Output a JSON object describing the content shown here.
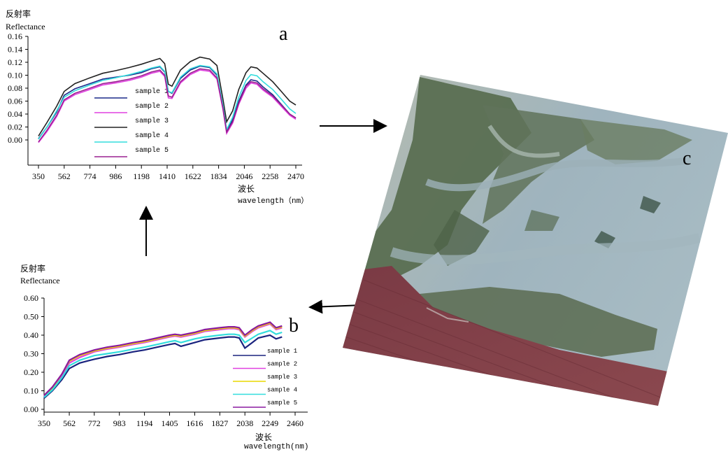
{
  "panel_labels": {
    "a": "a",
    "b": "b",
    "c": "c"
  },
  "chart_data": [
    {
      "type": "line",
      "panel": "a",
      "ylabel_cn": "反射率",
      "ylabel": "Reflectance",
      "xlabel_cn": "波长",
      "xlabel": "wavelength（nm）",
      "xlim": [
        350,
        2470
      ],
      "ylim": [
        0.0,
        0.16
      ],
      "yticks": [
        "0.00",
        "0.02",
        "0.04",
        "0.06",
        "0.08",
        "0.10",
        "0.12",
        "0.14",
        "0.16"
      ],
      "xticks": [
        "350",
        "562",
        "774",
        "986",
        "1198",
        "1410",
        "1622",
        "1834",
        "2046",
        "2258",
        "2470"
      ],
      "x": [
        350,
        420,
        500,
        562,
        650,
        774,
        880,
        986,
        1100,
        1198,
        1280,
        1350,
        1390,
        1420,
        1450,
        1520,
        1600,
        1680,
        1760,
        1820,
        1870,
        1900,
        1950,
        2000,
        2060,
        2100,
        2150,
        2200,
        2280,
        2350,
        2420,
        2470
      ],
      "series": [
        {
          "name": "sample 1",
          "color": "#1a2a8a",
          "values": [
            0.002,
            0.02,
            0.043,
            0.069,
            0.079,
            0.087,
            0.094,
            0.097,
            0.1,
            0.104,
            0.11,
            0.113,
            0.105,
            0.075,
            0.072,
            0.095,
            0.108,
            0.114,
            0.112,
            0.1,
            0.052,
            0.014,
            0.031,
            0.06,
            0.085,
            0.093,
            0.091,
            0.082,
            0.07,
            0.055,
            0.04,
            0.034
          ]
        },
        {
          "name": "sample 2",
          "color": "#e040e0",
          "values": [
            -0.004,
            0.013,
            0.036,
            0.06,
            0.07,
            0.078,
            0.085,
            0.088,
            0.092,
            0.097,
            0.103,
            0.106,
            0.098,
            0.065,
            0.064,
            0.088,
            0.101,
            0.108,
            0.106,
            0.094,
            0.047,
            0.01,
            0.026,
            0.055,
            0.08,
            0.088,
            0.086,
            0.077,
            0.066,
            0.052,
            0.038,
            0.032
          ]
        },
        {
          "name": "sample 3",
          "color": "#222222",
          "values": [
            0.006,
            0.027,
            0.052,
            0.075,
            0.087,
            0.096,
            0.103,
            0.107,
            0.112,
            0.117,
            0.122,
            0.126,
            0.118,
            0.086,
            0.083,
            0.108,
            0.121,
            0.128,
            0.125,
            0.115,
            0.063,
            0.028,
            0.045,
            0.078,
            0.104,
            0.113,
            0.111,
            0.103,
            0.09,
            0.075,
            0.06,
            0.054
          ]
        },
        {
          "name": "sample 4",
          "color": "#33dddd",
          "values": [
            0.001,
            0.02,
            0.045,
            0.066,
            0.076,
            0.085,
            0.092,
            0.096,
            0.101,
            0.106,
            0.111,
            0.114,
            0.106,
            0.075,
            0.073,
            0.097,
            0.11,
            0.115,
            0.113,
            0.102,
            0.054,
            0.016,
            0.035,
            0.066,
            0.092,
            0.101,
            0.099,
            0.09,
            0.078,
            0.063,
            0.048,
            0.041
          ]
        },
        {
          "name": "sample 5",
          "color": "#9a2090",
          "values": [
            -0.003,
            0.015,
            0.038,
            0.062,
            0.072,
            0.08,
            0.087,
            0.09,
            0.094,
            0.099,
            0.105,
            0.108,
            0.1,
            0.068,
            0.066,
            0.09,
            0.103,
            0.11,
            0.108,
            0.096,
            0.049,
            0.012,
            0.028,
            0.057,
            0.083,
            0.09,
            0.088,
            0.079,
            0.068,
            0.054,
            0.04,
            0.034
          ]
        }
      ]
    },
    {
      "type": "line",
      "panel": "b",
      "ylabel_cn": "反射率",
      "ylabel": "Reflectance",
      "xlabel_cn": "波长",
      "xlabel": "wavelength(nm)",
      "xlim": [
        350,
        2460
      ],
      "ylim": [
        0.0,
        0.6
      ],
      "yticks": [
        "0.00",
        "0.10",
        "0.20",
        "0.30",
        "0.40",
        "0.50",
        "0.60"
      ],
      "xticks": [
        "350",
        "562",
        "772",
        "983",
        "1194",
        "1405",
        "1616",
        "1827",
        "2038",
        "2249",
        "2460"
      ],
      "x": [
        350,
        420,
        500,
        562,
        650,
        772,
        880,
        983,
        1100,
        1194,
        1300,
        1405,
        1450,
        1500,
        1616,
        1700,
        1827,
        1900,
        1950,
        1990,
        2038,
        2100,
        2150,
        2249,
        2300,
        2350
      ],
      "series": [
        {
          "name": "sample 1",
          "color": "#1a237e",
          "values": [
            0.06,
            0.1,
            0.16,
            0.22,
            0.25,
            0.27,
            0.285,
            0.295,
            0.31,
            0.32,
            0.335,
            0.35,
            0.355,
            0.34,
            0.36,
            0.375,
            0.385,
            0.39,
            0.39,
            0.385,
            0.33,
            0.36,
            0.385,
            0.4,
            0.38,
            0.39
          ]
        },
        {
          "name": "sample 2",
          "color": "#e040e0",
          "values": [
            0.07,
            0.11,
            0.18,
            0.25,
            0.28,
            0.31,
            0.325,
            0.335,
            0.35,
            0.36,
            0.375,
            0.39,
            0.395,
            0.39,
            0.405,
            0.42,
            0.43,
            0.435,
            0.435,
            0.43,
            0.39,
            0.42,
            0.44,
            0.46,
            0.43,
            0.44
          ]
        },
        {
          "name": "sample 3",
          "color": "#e8d800",
          "values": [
            0.075,
            0.115,
            0.19,
            0.26,
            0.29,
            0.315,
            0.33,
            0.34,
            0.355,
            0.365,
            0.38,
            0.395,
            0.4,
            0.395,
            0.41,
            0.425,
            0.435,
            0.44,
            0.44,
            0.435,
            0.395,
            0.425,
            0.445,
            0.465,
            0.435,
            0.445
          ]
        },
        {
          "name": "sample 4",
          "color": "#33dddd",
          "values": [
            0.065,
            0.105,
            0.17,
            0.235,
            0.265,
            0.29,
            0.3,
            0.31,
            0.325,
            0.335,
            0.35,
            0.365,
            0.37,
            0.36,
            0.38,
            0.39,
            0.4,
            0.405,
            0.405,
            0.4,
            0.36,
            0.385,
            0.405,
            0.425,
            0.405,
            0.415
          ]
        },
        {
          "name": "sample 5",
          "color": "#8a1aa0",
          "values": [
            0.075,
            0.12,
            0.19,
            0.265,
            0.295,
            0.32,
            0.335,
            0.345,
            0.36,
            0.37,
            0.385,
            0.4,
            0.405,
            0.4,
            0.415,
            0.43,
            0.44,
            0.445,
            0.445,
            0.44,
            0.4,
            0.43,
            0.45,
            0.47,
            0.44,
            0.45
          ]
        }
      ]
    }
  ]
}
